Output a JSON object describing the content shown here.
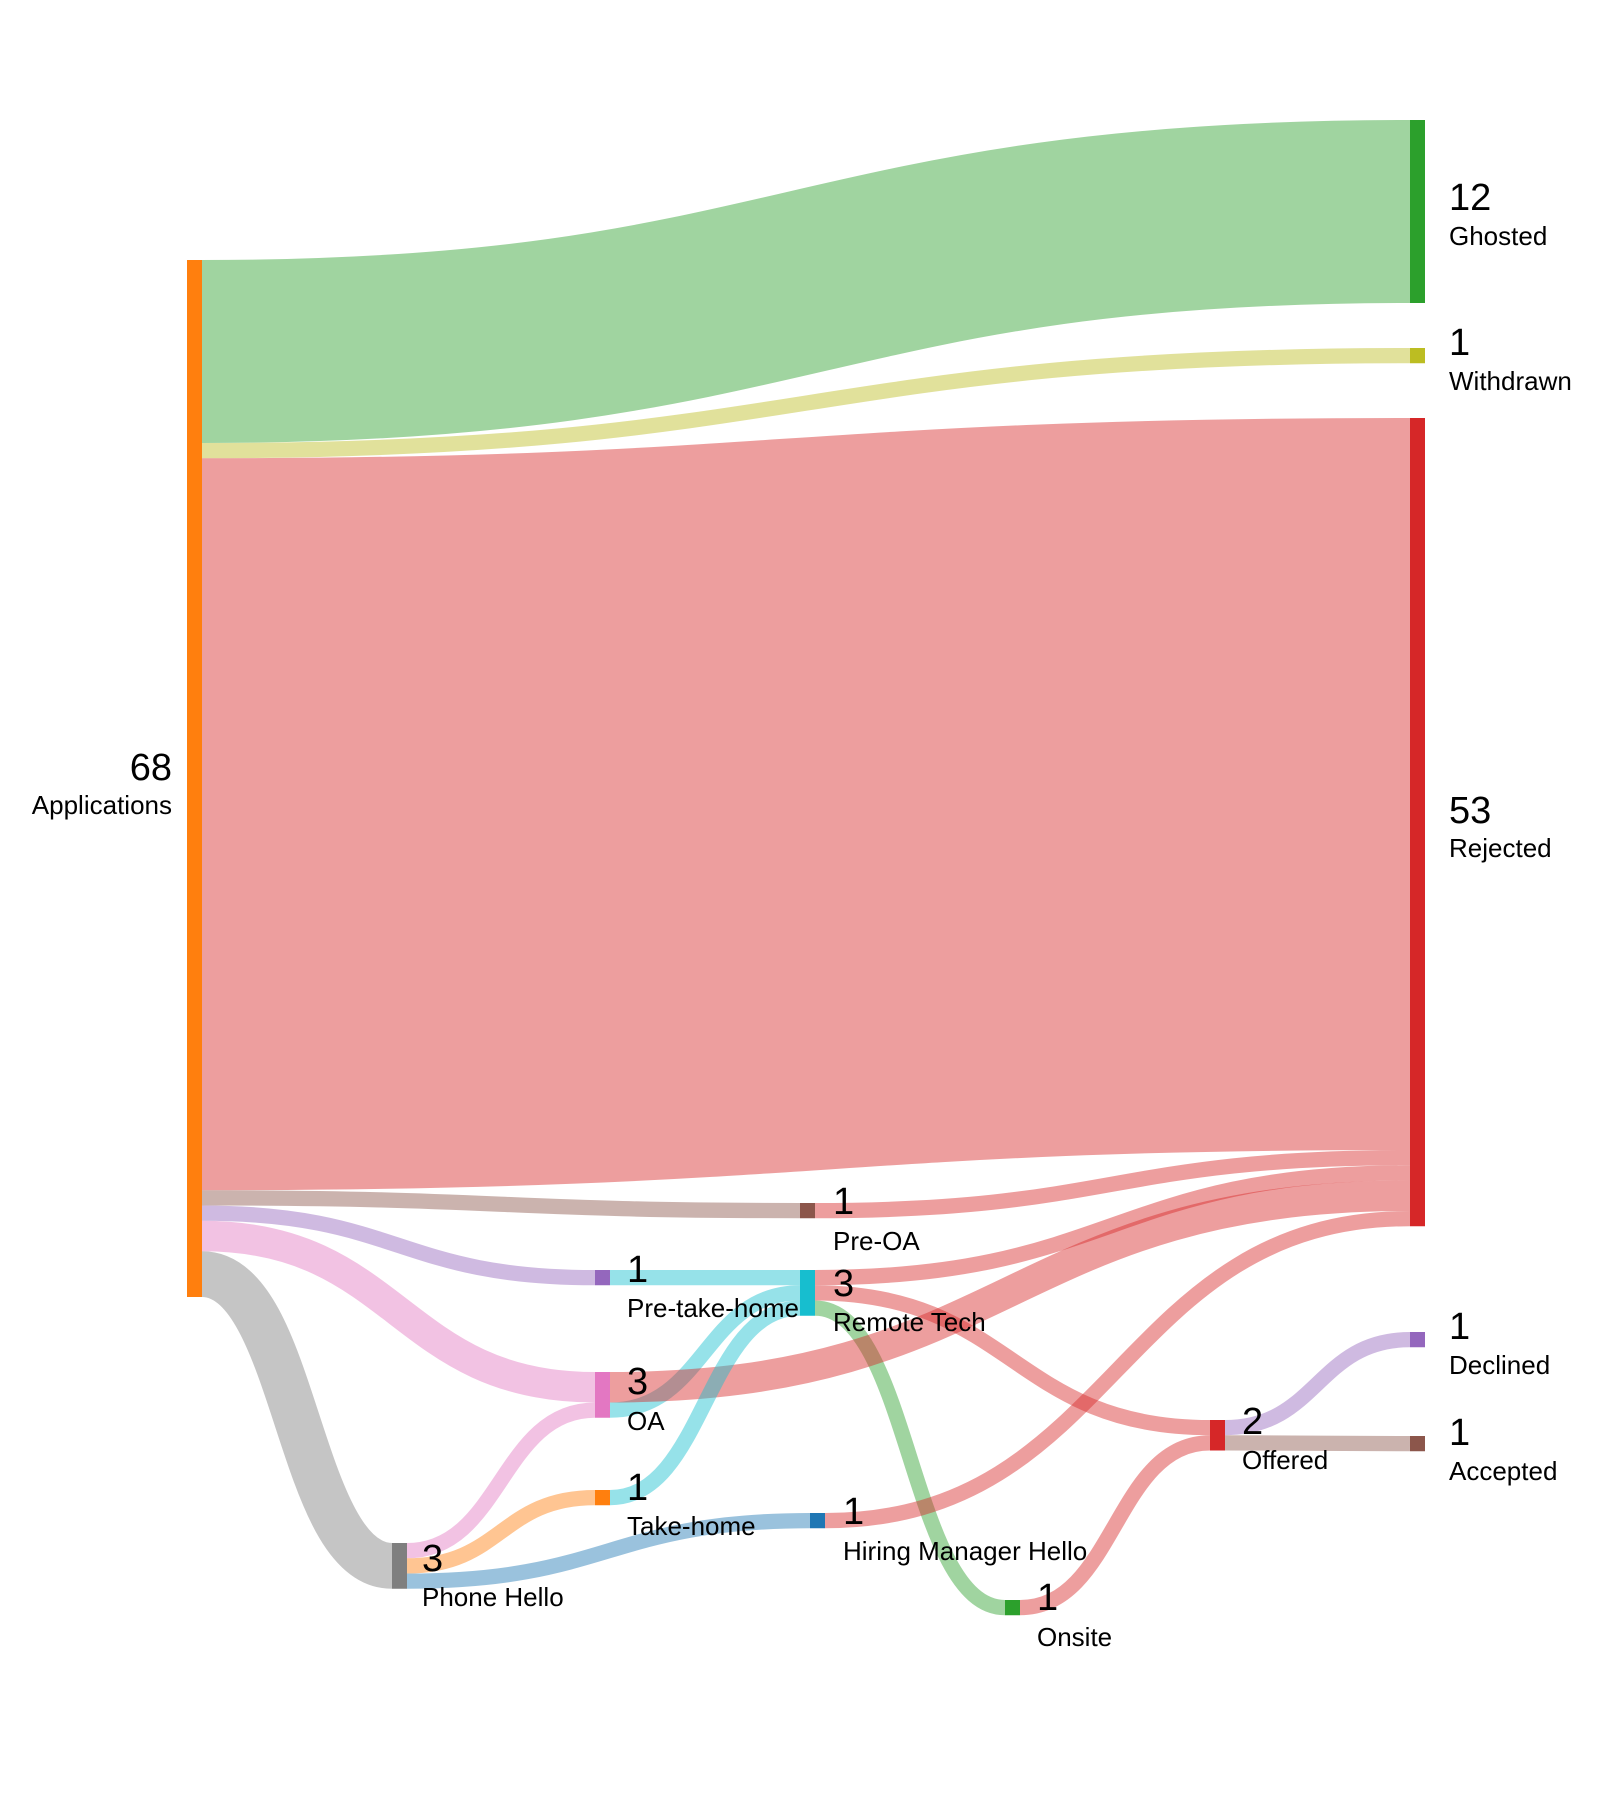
{
  "chart_data": {
    "type": "sankey",
    "nodes": [
      {
        "id": "applications",
        "label": "Applications",
        "value": "68",
        "color": "#ff7f0e"
      },
      {
        "id": "ghosted",
        "label": "Ghosted",
        "value": "12",
        "color": "#2ca02c"
      },
      {
        "id": "withdrawn",
        "label": "Withdrawn",
        "value": "1",
        "color": "#bcbd22"
      },
      {
        "id": "rejected",
        "label": "Rejected",
        "value": "53",
        "color": "#d62728"
      },
      {
        "id": "pre_oa",
        "label": "Pre-OA",
        "value": "1",
        "color": "#8c564b"
      },
      {
        "id": "pre_take_home",
        "label": "Pre-take-home",
        "value": "1",
        "color": "#9467bd"
      },
      {
        "id": "remote_tech",
        "label": "Remote Tech",
        "value": "3",
        "color": "#17becf"
      },
      {
        "id": "oa",
        "label": "OA",
        "value": "3",
        "color": "#e377c2"
      },
      {
        "id": "take_home",
        "label": "Take-home",
        "value": "1",
        "color": "#ff7f0e"
      },
      {
        "id": "hiring_manager_hello",
        "label": "Hiring Manager Hello",
        "value": "1",
        "color": "#1f77b4"
      },
      {
        "id": "phone_hello",
        "label": "Phone Hello",
        "value": "3",
        "color": "#7f7f7f"
      },
      {
        "id": "onsite",
        "label": "Onsite",
        "value": "1",
        "color": "#2ca02c"
      },
      {
        "id": "offered",
        "label": "Offered",
        "value": "2",
        "color": "#d62728"
      },
      {
        "id": "declined",
        "label": "Declined",
        "value": "1",
        "color": "#9467bd"
      },
      {
        "id": "accepted",
        "label": "Accepted",
        "value": "1",
        "color": "#8c564b"
      }
    ],
    "links": [
      {
        "source": "applications",
        "target": "ghosted",
        "value": 12
      },
      {
        "source": "applications",
        "target": "withdrawn",
        "value": 1
      },
      {
        "source": "applications",
        "target": "rejected",
        "value": 48
      },
      {
        "source": "applications",
        "target": "pre_oa",
        "value": 1
      },
      {
        "source": "applications",
        "target": "pre_take_home",
        "value": 1
      },
      {
        "source": "applications",
        "target": "oa",
        "value": 2
      },
      {
        "source": "applications",
        "target": "phone_hello",
        "value": 3
      },
      {
        "source": "pre_oa",
        "target": "rejected",
        "value": 1
      },
      {
        "source": "pre_take_home",
        "target": "remote_tech",
        "value": 1
      },
      {
        "source": "remote_tech",
        "target": "rejected",
        "value": 1
      },
      {
        "source": "remote_tech",
        "target": "offered",
        "value": 1
      },
      {
        "source": "remote_tech",
        "target": "onsite",
        "value": 1
      },
      {
        "source": "oa",
        "target": "remote_tech",
        "value": 1
      },
      {
        "source": "oa",
        "target": "rejected",
        "value": 2
      },
      {
        "source": "phone_hello",
        "target": "oa",
        "value": 1
      },
      {
        "source": "phone_hello",
        "target": "take_home",
        "value": 1
      },
      {
        "source": "phone_hello",
        "target": "hiring_manager_hello",
        "value": 1
      },
      {
        "source": "take_home",
        "target": "remote_tech",
        "value": 1
      },
      {
        "source": "hiring_manager_hello",
        "target": "rejected",
        "value": 1
      },
      {
        "source": "onsite",
        "target": "offered",
        "value": 1
      },
      {
        "source": "offered",
        "target": "declined",
        "value": 1
      },
      {
        "source": "offered",
        "target": "accepted",
        "value": 1
      }
    ]
  }
}
